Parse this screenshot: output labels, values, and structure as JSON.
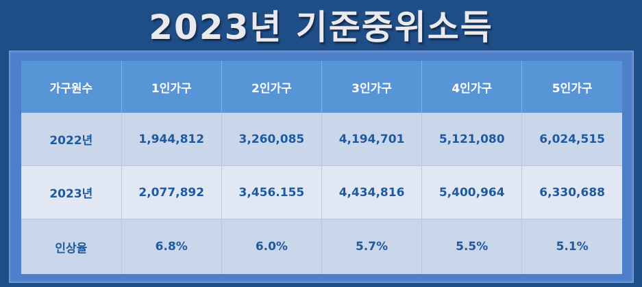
{
  "title": "2023년 기준중위소득",
  "table": {
    "headers": [
      "가구원수",
      "1인가구",
      "2인가구",
      "3인가구",
      "4인가구",
      "5인가구"
    ],
    "rows": [
      {
        "label": "2022년",
        "values": [
          "1,944,812",
          "3,260,085",
          "4,194,701",
          "5,121,080",
          "6,024,515"
        ]
      },
      {
        "label": "2023년",
        "values": [
          "2,077,892",
          "3,456.155",
          "4,434,816",
          "5,400,964",
          "6,330,688"
        ]
      },
      {
        "label": "인상율",
        "values": [
          "6.8%",
          "6.0%",
          "5.7%",
          "5.5%",
          "5.1%"
        ]
      }
    ]
  },
  "colors": {
    "background": "#1f4d86",
    "header": "#5795d6",
    "row_dark": "#cad6ea",
    "row_light": "#e2e8f3",
    "text_value": "#1f5aa0"
  }
}
